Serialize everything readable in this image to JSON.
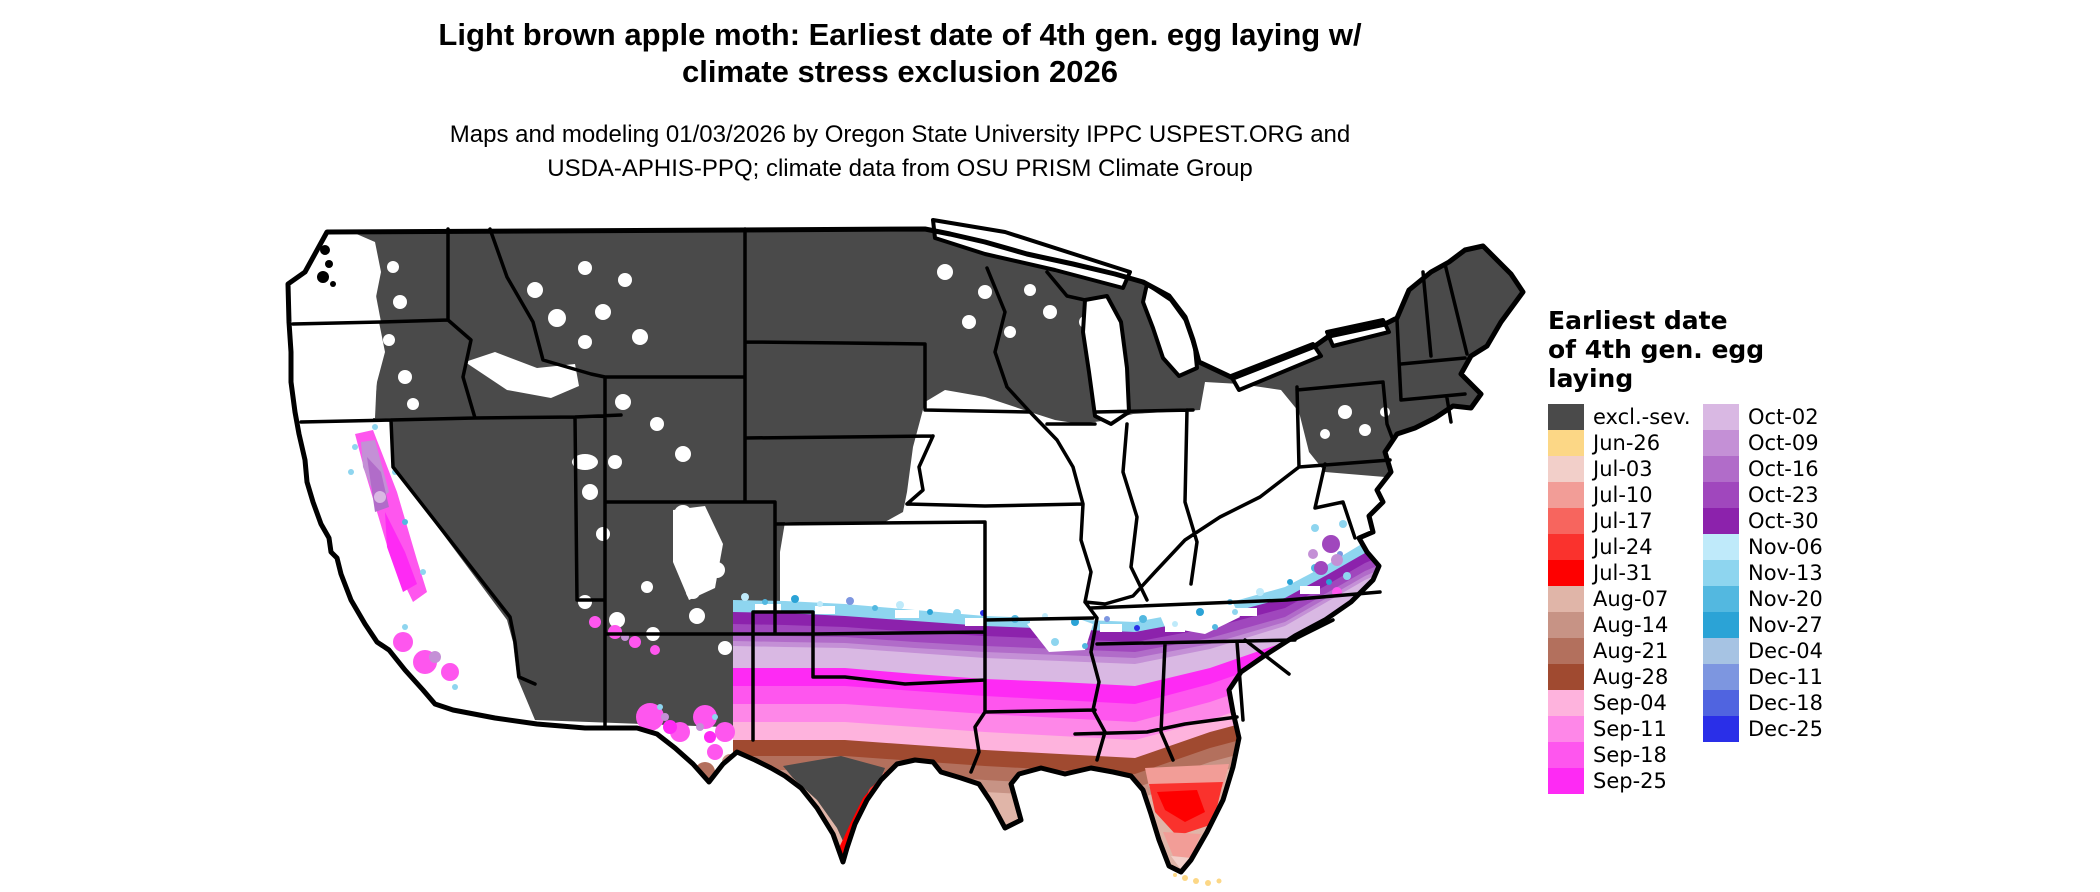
{
  "header": {
    "title_line1": "Light brown apple moth: Earliest date of 4th gen. egg laying w/",
    "title_line2": "climate stress exclusion 2026",
    "subtitle_line1": "Maps and modeling 01/03/2026 by Oregon State University IPPC USPEST.ORG and",
    "subtitle_line2": "USDA-APHIS-PPQ; climate data from OSU PRISM Climate Group"
  },
  "legend": {
    "title_lines": [
      "Earliest date",
      "of 4th gen. egg",
      "laying"
    ],
    "columns": [
      {
        "entries": [
          {
            "label": "excl.-sev.",
            "color": "#4a4a4a"
          },
          {
            "label": "Jun-26",
            "color": "#fcd786"
          },
          {
            "label": "Jul-03",
            "color": "#f2cfc9"
          },
          {
            "label": "Jul-10",
            "color": "#f29d97"
          },
          {
            "label": "Jul-17",
            "color": "#f7655e"
          },
          {
            "label": "Jul-24",
            "color": "#fa322d"
          },
          {
            "label": "Jul-31",
            "color": "#fe0000"
          },
          {
            "label": "Aug-07",
            "color": "#e0b5a8"
          },
          {
            "label": "Aug-14",
            "color": "#c79385"
          },
          {
            "label": "Aug-21",
            "color": "#b3705d"
          },
          {
            "label": "Aug-28",
            "color": "#a04a30"
          },
          {
            "label": "Sep-04",
            "color": "#feb3dd"
          },
          {
            "label": "Sep-11",
            "color": "#fe87e8"
          },
          {
            "label": "Sep-18",
            "color": "#fe56ee"
          },
          {
            "label": "Sep-25",
            "color": "#fe2af4"
          }
        ]
      },
      {
        "entries": [
          {
            "label": "Oct-02",
            "color": "#d9b8e3"
          },
          {
            "label": "Oct-09",
            "color": "#c490d6"
          },
          {
            "label": "Oct-16",
            "color": "#b16cc9"
          },
          {
            "label": "Oct-23",
            "color": "#a047bd"
          },
          {
            "label": "Oct-30",
            "color": "#8c22ac"
          },
          {
            "label": "Nov-06",
            "color": "#bfeafa"
          },
          {
            "label": "Nov-13",
            "color": "#8ed5ef"
          },
          {
            "label": "Nov-20",
            "color": "#53b8e0"
          },
          {
            "label": "Nov-27",
            "color": "#2ba3d6"
          },
          {
            "label": "Dec-04",
            "color": "#a6c3e3"
          },
          {
            "label": "Dec-11",
            "color": "#7d96e0"
          },
          {
            "label": "Dec-18",
            "color": "#5064e0"
          },
          {
            "label": "Dec-25",
            "color": "#2a2fe8"
          }
        ]
      }
    ]
  }
}
